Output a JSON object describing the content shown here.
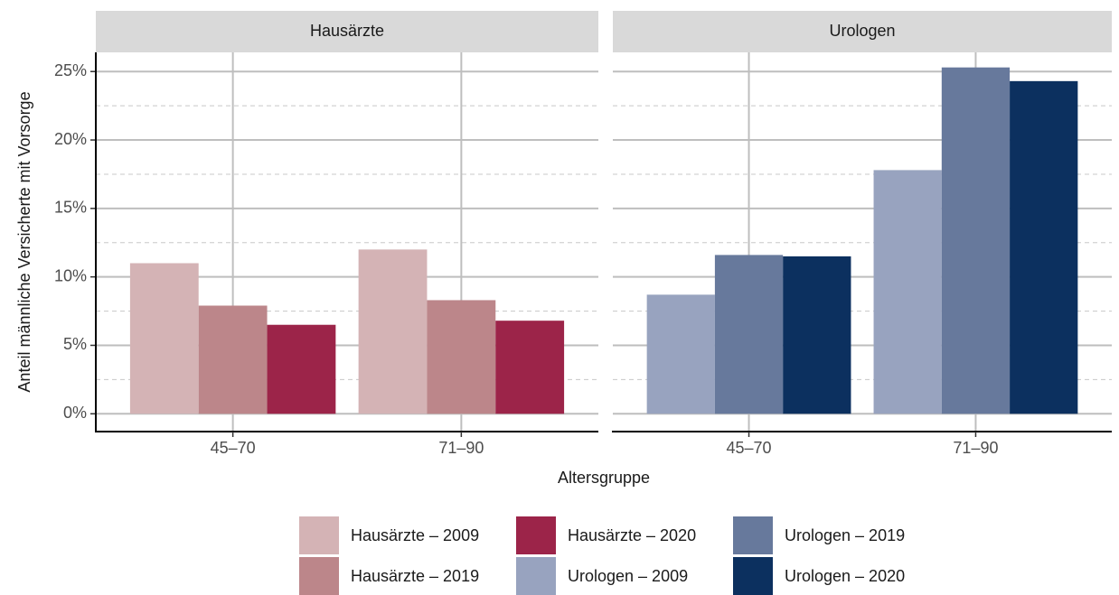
{
  "chart_data": [
    {
      "type": "bar",
      "title": "Hausärzte",
      "x_label": "Altersgruppe",
      "y_label": "Anteil männliche Versicherte mit Vorsorge",
      "categories": [
        "45–70",
        "71–90"
      ],
      "series": [
        {
          "name": "Hausärzte – 2009",
          "color": "#d4b3b5",
          "values": [
            11.0,
            12.0
          ]
        },
        {
          "name": "Hausärzte – 2019",
          "color": "#bc868a",
          "values": [
            7.9,
            8.3
          ]
        },
        {
          "name": "Hausärzte – 2020",
          "color": "#9c2449",
          "values": [
            6.5,
            6.8
          ]
        }
      ],
      "ylim": [
        -1.3,
        26.4
      ],
      "yticks": [
        {
          "value": 0,
          "label": "0%"
        },
        {
          "value": 5,
          "label": "5%"
        },
        {
          "value": 10,
          "label": "10%"
        },
        {
          "value": 15,
          "label": "15%"
        },
        {
          "value": 20,
          "label": "20%"
        },
        {
          "value": 25,
          "label": "25%"
        }
      ],
      "minor_yticks": [
        2.5,
        7.5,
        12.5,
        17.5,
        22.5
      ],
      "grid": true
    },
    {
      "type": "bar",
      "title": "Urologen",
      "categories": [
        "45–70",
        "71–90"
      ],
      "series": [
        {
          "name": "Urologen – 2009",
          "color": "#98a3bf",
          "values": [
            8.7,
            17.8
          ]
        },
        {
          "name": "Urologen – 2019",
          "color": "#67799c",
          "values": [
            11.6,
            25.3
          ]
        },
        {
          "name": "Urologen – 2020",
          "color": "#0c305f",
          "values": [
            11.5,
            24.3
          ]
        }
      ],
      "ylim": [
        -1.3,
        26.4
      ],
      "yticks": [
        0,
        5,
        10,
        15,
        20,
        25
      ],
      "minor_yticks": [
        2.5,
        7.5,
        12.5,
        17.5,
        22.5
      ],
      "grid": true
    }
  ]
}
